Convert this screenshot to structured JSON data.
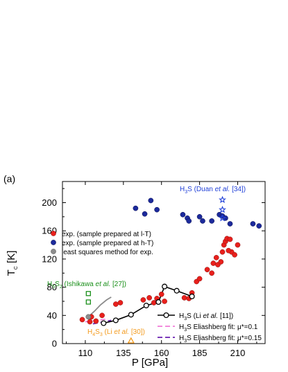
{
  "chart_data": {
    "type": "scatter",
    "panel_label": "(a)",
    "xlabel": "P [GPa]",
    "ylabel": "T_C [K]",
    "ylabel_main": "T",
    "ylabel_sub": "C",
    "ylabel_unit": " [K]",
    "xlim": [
      95,
      228
    ],
    "ylim": [
      0,
      230
    ],
    "xticks": [
      110,
      135,
      160,
      185,
      210
    ],
    "xtick_labels": [
      "110",
      "135",
      "160",
      "185",
      "210"
    ],
    "yticks": [
      0,
      40,
      80,
      120,
      160,
      200
    ],
    "ytick_labels": [
      "0",
      "40",
      "80",
      "120",
      "160",
      "200"
    ],
    "grid": false,
    "colors": {
      "red": "#e8201c",
      "blue": "#1c2a9c",
      "gray": "#8c8c8c",
      "black": "#000000",
      "green": "#1a8f1a",
      "orange": "#f39a1c",
      "pink": "#f07ad8",
      "purple": "#6a1fb0",
      "duan": "#2040d8"
    },
    "series": [
      {
        "name": "exp. (sample prepared at l-T)",
        "marker": "circle",
        "color": "#e8201c",
        "points": [
          [
            108,
            34
          ],
          [
            113,
            31
          ],
          [
            114,
            38
          ],
          [
            117,
            32
          ],
          [
            121,
            40
          ],
          [
            130,
            56
          ],
          [
            133,
            58
          ],
          [
            148,
            62
          ],
          [
            152,
            65
          ],
          [
            155,
            58
          ],
          [
            157,
            64
          ],
          [
            160,
            70
          ],
          [
            162,
            60
          ],
          [
            175,
            65
          ],
          [
            180,
            72
          ],
          [
            178,
            64
          ],
          [
            183,
            88
          ],
          [
            185,
            92
          ],
          [
            190,
            105
          ],
          [
            193,
            100
          ],
          [
            194,
            114
          ],
          [
            197,
            112
          ],
          [
            196,
            122
          ],
          [
            200,
            130
          ],
          [
            201,
            140
          ],
          [
            202,
            145
          ],
          [
            203,
            149
          ],
          [
            205,
            148
          ],
          [
            206,
            130
          ],
          [
            208,
            126
          ],
          [
            210,
            140
          ],
          [
            204,
            132
          ],
          [
            199,
            116
          ]
        ]
      },
      {
        "name": "exp. (sample prepared at h-T)",
        "marker": "circle",
        "color": "#1c2a9c",
        "points": [
          [
            143,
            192
          ],
          [
            149,
            184
          ],
          [
            153,
            203
          ],
          [
            157,
            190
          ],
          [
            174,
            183
          ],
          [
            177,
            178
          ],
          [
            178,
            174
          ],
          [
            185,
            180
          ],
          [
            187,
            174
          ],
          [
            193,
            174
          ],
          [
            198,
            183
          ],
          [
            200,
            181
          ],
          [
            202,
            178
          ],
          [
            205,
            170
          ],
          [
            220,
            170
          ],
          [
            224,
            167
          ]
        ]
      },
      {
        "name": "least squares method for exp.",
        "marker": "circle",
        "color": "#8c8c8c",
        "points": [
          [
            112,
            38
          ]
        ],
        "curve": [
          [
            112,
            38
          ],
          [
            116,
            46
          ],
          [
            120,
            55
          ],
          [
            124,
            62
          ],
          [
            127,
            66
          ]
        ]
      },
      {
        "name": "H3S (Li et al. [11])",
        "marker": "open-circle-line",
        "color": "#000000",
        "points": [
          [
            122,
            29
          ],
          [
            130,
            33
          ],
          [
            140,
            41
          ],
          [
            150,
            54
          ],
          [
            158,
            59
          ],
          [
            162,
            81
          ],
          [
            170,
            75
          ],
          [
            180,
            67
          ]
        ]
      },
      {
        "name": "H3S Eliashberg fit: μ*=0.1",
        "marker": "dashed-line",
        "color": "#f07ad8",
        "curve": [
          [
            110,
            31
          ],
          [
            125,
            35
          ]
        ]
      },
      {
        "name": "H3S Eliashberg fit: μ*=0.15",
        "marker": "dashed-line",
        "color": "#6a1fb0",
        "curve": [
          [
            115,
            28
          ],
          [
            127,
            33
          ]
        ]
      },
      {
        "name": "H5S2 (Ishikawa et al. [27])",
        "marker": "open-square",
        "color": "#1a8f1a",
        "points": [
          [
            112,
            71
          ],
          [
            112,
            59
          ]
        ]
      },
      {
        "name": "H4S3 (Li et al. [30])",
        "marker": "open-triangle",
        "color": "#f39a1c",
        "points": [
          [
            140,
            2
          ]
        ]
      },
      {
        "name": "H3S (Duan et al. [34])",
        "marker": "open-star",
        "color": "#2040d8",
        "points": [
          [
            200,
            204
          ],
          [
            200,
            190
          ],
          [
            200,
            178
          ]
        ]
      }
    ],
    "legend_left": [
      "exp. (sample prepared at l-T)",
      "exp. (sample prepared at h-T)",
      "least squares method for exp."
    ],
    "legend_right": {
      "li": {
        "pre": "H",
        "sub": "3",
        "mid": "S (Li ",
        "ital": "et al.",
        "post": " [11])"
      },
      "fit1": {
        "pre": "H",
        "sub": "3",
        "mid": "S Eliashberg fit: μ*=0.1"
      },
      "fit2": {
        "pre": "H",
        "sub": "3",
        "mid": "S Eliashberg fit: μ*=0.15"
      }
    },
    "annotations": {
      "ishikawa": {
        "pre": "H",
        "sub1": "5",
        "mid": "S",
        "sub2": "2",
        "post1": " (Ishikawa ",
        "ital": "et al.",
        "post2": " [27])"
      },
      "li30": {
        "pre": "H",
        "sub1": "4",
        "mid": "S",
        "sub2": "3",
        "post1": " (Li ",
        "ital": "et al.",
        "post2": " [30])"
      },
      "duan": {
        "pre": "H",
        "sub1": "3",
        "mid": "S (Duan ",
        "ital": "et al.",
        "post2": " [34])"
      }
    }
  }
}
